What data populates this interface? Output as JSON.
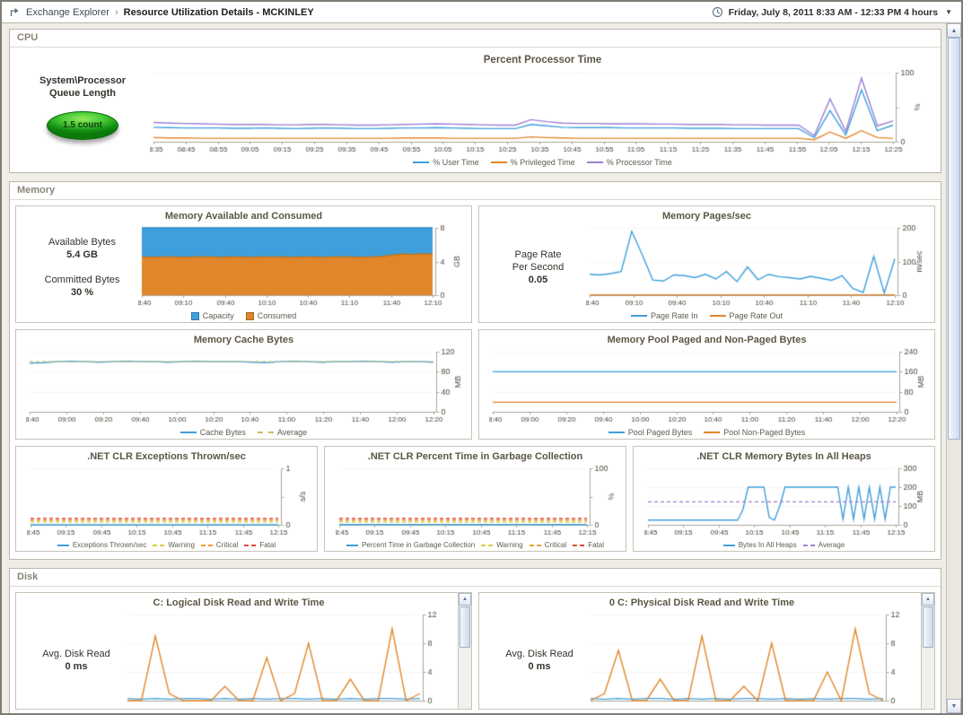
{
  "header": {
    "breadcrumb_root": "Exchange Explorer",
    "breadcrumb_sep": "›",
    "breadcrumb_current": "Resource Utilization Details - MCKINLEY",
    "time_range": "Friday, July 8, 2011 8:33 AM - 12:33 PM 4 hours"
  },
  "icons": {
    "scroll_up": "▲",
    "scroll_down": "▼",
    "caret_down": "▼"
  },
  "sections": {
    "cpu": {
      "title": "CPU"
    },
    "memory": {
      "title": "Memory"
    },
    "disk": {
      "title": "Disk"
    }
  },
  "cpu_panel": {
    "queue_label_line1": "System\\Processor",
    "queue_label_line2": "Queue Length",
    "queue_value": "1.5 count"
  },
  "memory_panel": {
    "available_label": "Available Bytes",
    "available_value": "5.4 GB",
    "committed_label": "Committed Bytes",
    "committed_value": "30 %",
    "page_rate_label_1": "Page Rate",
    "page_rate_label_2": "Per Second",
    "page_rate_value": "0.05"
  },
  "disk_panel": {
    "left_label": "Avg. Disk Read",
    "left_value": "0 ms",
    "right_label": "Avg. Disk Read",
    "right_value": "0 ms"
  },
  "colors": {
    "series_blue": "#3f9fdc",
    "series_orange": "#e2862c",
    "series_purple": "#9b7fd4",
    "warning_yellow": "#d6cb3e",
    "critical_orange": "#ef9a2e",
    "fatal_red": "#e04438",
    "gauge_green": "#28a428"
  },
  "chart_data": [
    {
      "id": "percent-processor-time",
      "type": "line",
      "title": "Percent Processor Time",
      "unit": "%",
      "ylim": [
        0,
        100
      ],
      "yticks": [
        0,
        100
      ],
      "x_labels": [
        "08:35",
        "08:45",
        "08:55",
        "09:05",
        "09:15",
        "09:25",
        "09:35",
        "09:45",
        "09:55",
        "10:05",
        "10:15",
        "10:25",
        "10:35",
        "10:45",
        "10:55",
        "11:05",
        "11:15",
        "11:25",
        "11:35",
        "11:45",
        "11:55",
        "12:05",
        "12:15",
        "12:25"
      ],
      "series": [
        {
          "name": "% User Time",
          "color": "#3f9fdc",
          "values": [
            21,
            20.5,
            20,
            20,
            20,
            19.5,
            19.5,
            20,
            19.5,
            19,
            19.5,
            20,
            19.5,
            19,
            19,
            19.5,
            20,
            20,
            20.5,
            20,
            19.5,
            19,
            19,
            19,
            25,
            23,
            21,
            20.5,
            20.5,
            20.5,
            20,
            20,
            20,
            20,
            19.5,
            19.5,
            19.5,
            19,
            19,
            19,
            19,
            19,
            6,
            45,
            10,
            75,
            16,
            24
          ]
        },
        {
          "name": "% Privileged Time",
          "color": "#e2862c",
          "values": [
            6,
            5.5,
            5.5,
            5,
            5,
            5,
            5,
            5,
            5,
            5,
            5,
            5,
            5,
            5,
            5,
            5,
            5.5,
            5.5,
            5.5,
            5,
            5,
            5,
            5,
            5,
            7,
            6,
            5.5,
            5,
            5,
            5,
            5,
            5,
            5,
            5,
            5,
            5,
            5,
            5,
            5,
            5,
            5,
            5,
            3,
            14,
            5,
            16,
            6,
            5
          ]
        },
        {
          "name": "% Processor Time",
          "color": "#9b7fd4",
          "values": [
            28,
            27,
            26.5,
            26,
            25.5,
            25,
            25,
            25,
            24.5,
            24.5,
            25,
            25,
            24.5,
            24,
            24,
            24.5,
            25,
            25.5,
            26,
            25.5,
            25,
            24.5,
            24,
            24,
            32,
            29,
            27,
            26.5,
            26.5,
            26,
            26,
            26,
            25.5,
            25.5,
            25,
            25,
            25,
            24.5,
            24.5,
            24,
            24,
            24,
            9,
            62,
            15,
            92,
            23,
            30
          ]
        }
      ]
    },
    {
      "id": "memory-available-consumed",
      "type": "area",
      "title": "Memory Available and Consumed",
      "unit": "GB",
      "ylim": [
        0,
        8
      ],
      "yticks": [
        0,
        4,
        8
      ],
      "x_labels": [
        "08:40",
        "09:10",
        "09:40",
        "10:10",
        "10:40",
        "11:10",
        "11:40",
        "12:10"
      ],
      "series": [
        {
          "name": "Capacity",
          "color": "#3f9fdc",
          "edge": "#2b85c4",
          "values": [
            8,
            8,
            8,
            8,
            8,
            8,
            8,
            8,
            8,
            8,
            8,
            8,
            8,
            8,
            8,
            8,
            8,
            8,
            8,
            8,
            8,
            8,
            8,
            8,
            8,
            8,
            8,
            8,
            8,
            8
          ]
        },
        {
          "name": "Consumed",
          "color": "#e2862c",
          "edge": "#c8710f",
          "values": [
            4.55,
            4.5,
            4.55,
            4.55,
            4.5,
            4.55,
            4.55,
            4.55,
            4.5,
            4.55,
            4.55,
            4.5,
            4.55,
            4.55,
            4.55,
            4.5,
            4.55,
            4.55,
            4.5,
            4.55,
            4.55,
            4.55,
            4.5,
            4.55,
            4.6,
            4.75,
            4.9,
            4.85,
            4.9,
            4.9
          ]
        }
      ]
    },
    {
      "id": "memory-pages-sec",
      "type": "line",
      "title": "Memory Pages/sec",
      "unit": "m/sec",
      "ylim": [
        0,
        200
      ],
      "yticks": [
        0,
        100,
        200
      ],
      "x_labels": [
        "08:40",
        "09:10",
        "09:40",
        "10:10",
        "10:40",
        "11:10",
        "11:40",
        "12:10"
      ],
      "series": [
        {
          "name": "Page Rate In",
          "color": "#3f9fdc",
          "values": [
            62,
            60,
            64,
            70,
            190,
            120,
            45,
            42,
            60,
            58,
            52,
            62,
            48,
            70,
            40,
            84,
            46,
            62,
            55,
            52,
            48,
            56,
            50,
            44,
            58,
            20,
            8,
            115,
            6,
            108
          ]
        },
        {
          "name": "Page Rate Out",
          "color": "#e2862c",
          "values": [
            1,
            1
          ]
        }
      ]
    },
    {
      "id": "memory-cache-bytes",
      "type": "line",
      "title": "Memory Cache Bytes",
      "unit": "MB",
      "ylim": [
        0,
        120
      ],
      "yticks": [
        0,
        40,
        80,
        120
      ],
      "x_labels": [
        "08:40",
        "09:00",
        "09:20",
        "09:40",
        "10:00",
        "10:20",
        "10:40",
        "11:00",
        "11:20",
        "11:40",
        "12:00",
        "12:20"
      ],
      "series": [
        {
          "name": "Cache Bytes",
          "color": "#3f9fdc",
          "values": [
            97,
            98,
            100,
            101,
            100,
            99,
            100,
            101,
            100,
            100,
            99,
            100,
            101,
            100,
            100,
            100,
            99,
            98,
            100,
            101,
            100,
            99,
            100,
            100,
            101,
            100,
            99,
            100,
            100,
            99
          ]
        },
        {
          "name": "Average",
          "color": "#c9bf63",
          "dash": true,
          "values": [
            100,
            100
          ]
        }
      ]
    },
    {
      "id": "memory-pool-bytes",
      "type": "line",
      "title": "Memory Pool Paged and Non-Paged Bytes",
      "unit": "MB",
      "ylim": [
        0,
        240
      ],
      "yticks": [
        0,
        80,
        160,
        240
      ],
      "x_labels": [
        "08:40",
        "09:00",
        "09:20",
        "09:40",
        "10:00",
        "10:20",
        "10:40",
        "11:00",
        "11:20",
        "11:40",
        "12:00",
        "12:20"
      ],
      "series": [
        {
          "name": "Pool Paged Bytes",
          "color": "#3f9fdc",
          "values": [
            160,
            160
          ]
        },
        {
          "name": "Pool Non-Paged Bytes",
          "color": "#e2862c",
          "values": [
            38,
            38
          ]
        }
      ]
    },
    {
      "id": "clr-exceptions",
      "type": "line",
      "title": ".NET CLR Exceptions Thrown/sec",
      "unit": "s/s",
      "ylim": [
        0,
        1
      ],
      "yticks": [
        0,
        1
      ],
      "x_labels": [
        "08:45",
        "09:15",
        "09:45",
        "10:15",
        "10:45",
        "11:15",
        "11:45",
        "12:15"
      ],
      "series": [
        {
          "name": "Exceptions Thrown/sec",
          "color": "#3f9fdc",
          "values": [
            0,
            0
          ]
        },
        {
          "name": "Warning",
          "color": "#d6cb3e",
          "dash": true,
          "values": [
            0.05,
            0.05
          ]
        },
        {
          "name": "Critical",
          "color": "#ef9a2e",
          "dash": true,
          "values": [
            0.08,
            0.08
          ]
        },
        {
          "name": "Fatal",
          "color": "#e04438",
          "dash": true,
          "values": [
            0.11,
            0.11
          ]
        }
      ]
    },
    {
      "id": "clr-gc-percent",
      "type": "line",
      "title": ".NET CLR Percent Time in Garbage Collection",
      "unit": "%",
      "ylim": [
        0,
        100
      ],
      "yticks": [
        0,
        100
      ],
      "x_labels": [
        "08:45",
        "09:15",
        "09:45",
        "10:15",
        "10:45",
        "11:15",
        "11:45",
        "12:15"
      ],
      "series": [
        {
          "name": "Percent Time in Garbage Collection",
          "color": "#3f9fdc",
          "values": [
            0.5,
            0.3,
            0.6,
            0.4,
            0.5,
            0.4,
            0.6,
            0.3,
            0.5,
            0.4,
            0.5,
            0.6,
            0.4,
            0.5,
            0.3,
            0.5
          ]
        },
        {
          "name": "Warning",
          "color": "#d6cb3e",
          "dash": true,
          "values": [
            5,
            5
          ]
        },
        {
          "name": "Critical",
          "color": "#ef9a2e",
          "dash": true,
          "values": [
            8,
            8
          ]
        },
        {
          "name": "Fatal",
          "color": "#e04438",
          "dash": true,
          "values": [
            11,
            11
          ]
        }
      ]
    },
    {
      "id": "clr-heap-bytes",
      "type": "line",
      "title": ".NET CLR Memory Bytes In All Heaps",
      "unit": "MB",
      "ylim": [
        0,
        300
      ],
      "yticks": [
        0,
        100,
        200,
        300
      ],
      "x_labels": [
        "08:45",
        "09:15",
        "09:45",
        "10:15",
        "10:45",
        "11:15",
        "11:45",
        "12:15"
      ],
      "series": [
        {
          "name": "Bytes In All Heaps",
          "color": "#3f9fdc",
          "values": [
            25,
            25,
            25,
            25,
            25,
            25,
            25,
            25,
            25,
            25,
            25,
            25,
            25,
            25,
            25,
            25,
            25,
            25,
            80,
            200,
            200,
            200,
            200,
            40,
            25,
            100,
            200,
            200,
            200,
            200,
            200,
            200,
            200,
            200,
            200,
            200,
            200,
            30,
            200,
            30,
            200,
            30,
            200,
            30,
            200,
            30,
            200,
            200
          ]
        },
        {
          "name": "Average",
          "color": "#9b7fd4",
          "dash": true,
          "values": [
            122,
            122
          ]
        }
      ]
    },
    {
      "id": "logical-disk-rw",
      "type": "line",
      "title": "C: Logical Disk Read and Write Time",
      "unit": "",
      "ylim": [
        0,
        12
      ],
      "yticks": [
        0,
        4,
        8,
        12
      ],
      "x_labels": [],
      "series": [
        {
          "name": "",
          "color": "#3f9fdc",
          "values": [
            0.3,
            0.2,
            0.3,
            0.2,
            0.3,
            0.3,
            0.2,
            0.3,
            0.2,
            0.3,
            0.2,
            0.3,
            0.3,
            0.2,
            0.3,
            0.2,
            0.3,
            0.2,
            0.3,
            0.3,
            0.2,
            0.3
          ]
        },
        {
          "name": "",
          "color": "#e2862c",
          "values": [
            0,
            0,
            9,
            1,
            0,
            0,
            0,
            2,
            0,
            0,
            6,
            0,
            1,
            8,
            0,
            0,
            3,
            0,
            0,
            10,
            0,
            1
          ]
        }
      ]
    },
    {
      "id": "physical-disk-rw",
      "type": "line",
      "title": "0 C: Physical Disk Read and Write Time",
      "unit": "",
      "ylim": [
        0,
        12
      ],
      "yticks": [
        0,
        4,
        8,
        12
      ],
      "x_labels": [],
      "series": [
        {
          "name": "",
          "color": "#3f9fdc",
          "values": [
            0.3,
            0.2,
            0.3,
            0.2,
            0.3,
            0.3,
            0.2,
            0.3,
            0.2,
            0.3,
            0.2,
            0.3,
            0.3,
            0.2,
            0.3,
            0.2,
            0.3,
            0.2,
            0.3,
            0.3,
            0.2,
            0.3
          ]
        },
        {
          "name": "",
          "color": "#e2862c",
          "values": [
            0,
            1,
            7,
            0,
            0,
            3,
            0,
            0,
            9,
            0,
            0,
            2,
            0,
            8,
            0,
            0,
            0,
            4,
            0,
            10,
            1,
            0
          ]
        }
      ]
    }
  ]
}
